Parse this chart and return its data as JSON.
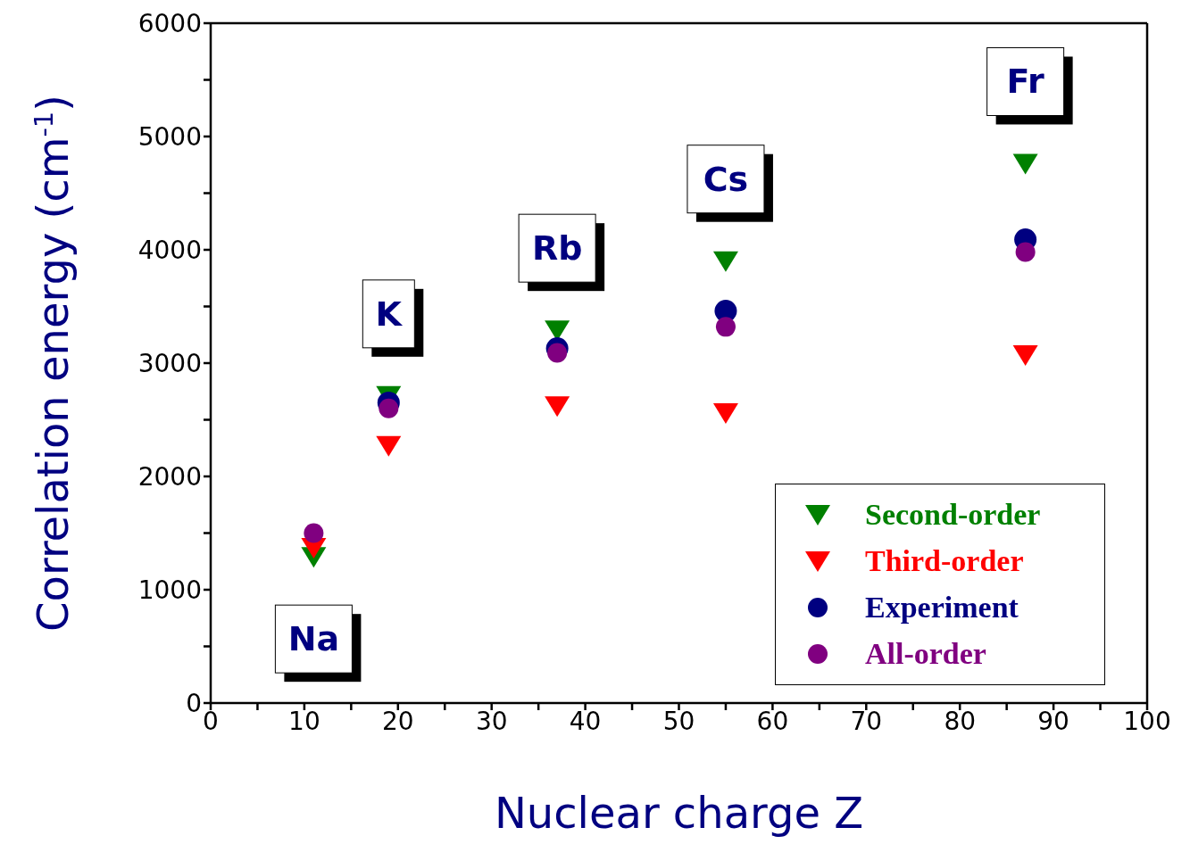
{
  "chart_data": {
    "type": "scatter",
    "xlabel": "Nuclear charge Z",
    "ylabel": "Correlation energy (cm$^{-1}$)",
    "x": [
      11,
      19,
      37,
      55,
      87
    ],
    "series": [
      {
        "name": "Second-order",
        "color": "#008000",
        "marker": "triangle",
        "values": [
          1290,
          2710,
          3290,
          3900,
          4760
        ]
      },
      {
        "name": "Third-order",
        "color": "#ff0000",
        "marker": "triangle",
        "values": [
          1370,
          2270,
          2620,
          2560,
          3070
        ]
      },
      {
        "name": "Experiment",
        "color": "#000080",
        "marker": "circle",
        "values": [
          null,
          2650,
          3130,
          3460,
          4090
        ]
      },
      {
        "name": "All-order",
        "color": "#800080",
        "marker": "circle",
        "values": [
          1500,
          2600,
          3090,
          3320,
          3980
        ]
      }
    ],
    "annotations": [
      {
        "text": "Na",
        "x": 11,
        "y": 1290
      },
      {
        "text": "K",
        "x": 19,
        "y": 2710
      },
      {
        "text": "Rb",
        "x": 37,
        "y": 3290
      },
      {
        "text": "Cs",
        "x": 55,
        "y": 3900
      },
      {
        "text": "Fr",
        "x": 87,
        "y": 4760
      }
    ],
    "xlim": [
      0,
      100
    ],
    "xticks": [
      0,
      {
        "value": 5,
        "label": null
      },
      10,
      {
        "value": 15,
        "label": null
      },
      20,
      {
        "value": 25,
        "label": null
      },
      30,
      {
        "value": 35,
        "label": null
      },
      40,
      {
        "value": 45,
        "label": null
      },
      50,
      {
        "value": 55,
        "label": null
      },
      60,
      {
        "value": 65,
        "label": null
      },
      70,
      {
        "value": 75,
        "label": null
      },
      80,
      {
        "value": 85,
        "label": null
      },
      90,
      {
        "value": 95,
        "label": null
      },
      100
    ],
    "ylim": [
      0,
      6000
    ],
    "yticks": [
      0,
      {
        "value": 500,
        "label": null
      },
      1000,
      {
        "value": 1500,
        "label": null
      },
      2000,
      {
        "value": 2500,
        "label": null
      },
      3000,
      {
        "value": 3500,
        "label": null
      },
      4000,
      {
        "value": 4500,
        "label": null
      },
      5000,
      {
        "value": 5500,
        "label": null
      },
      6000
    ],
    "grid": false,
    "legend": "bottom right"
  }
}
